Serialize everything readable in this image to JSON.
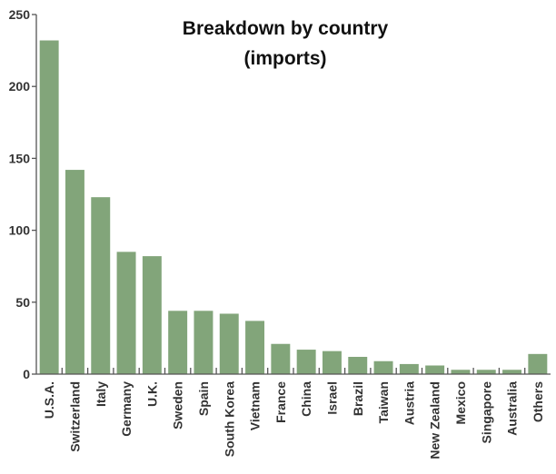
{
  "chart_data": {
    "type": "bar",
    "title": [
      "Breakdown by country",
      "(imports)"
    ],
    "xlabel": "",
    "ylabel": "",
    "ylim": [
      0,
      250
    ],
    "yticks": [
      0,
      50,
      100,
      150,
      200,
      250
    ],
    "grid": false,
    "legend": "none",
    "bar_color": "#82a57a",
    "categories": [
      "U.S.A.",
      "Switzerland",
      "Italy",
      "Germany",
      "U.K.",
      "Sweden",
      "Spain",
      "South Korea",
      "Vietnam",
      "France",
      "China",
      "Israel",
      "Brazil",
      "Taiwan",
      "Austria",
      "New Zealand",
      "Mexico",
      "Singapore",
      "Australia",
      "Others"
    ],
    "values": [
      232,
      142,
      123,
      85,
      82,
      44,
      44,
      42,
      37,
      21,
      17,
      16,
      12,
      9,
      7,
      6,
      3,
      3,
      3,
      14
    ]
  }
}
